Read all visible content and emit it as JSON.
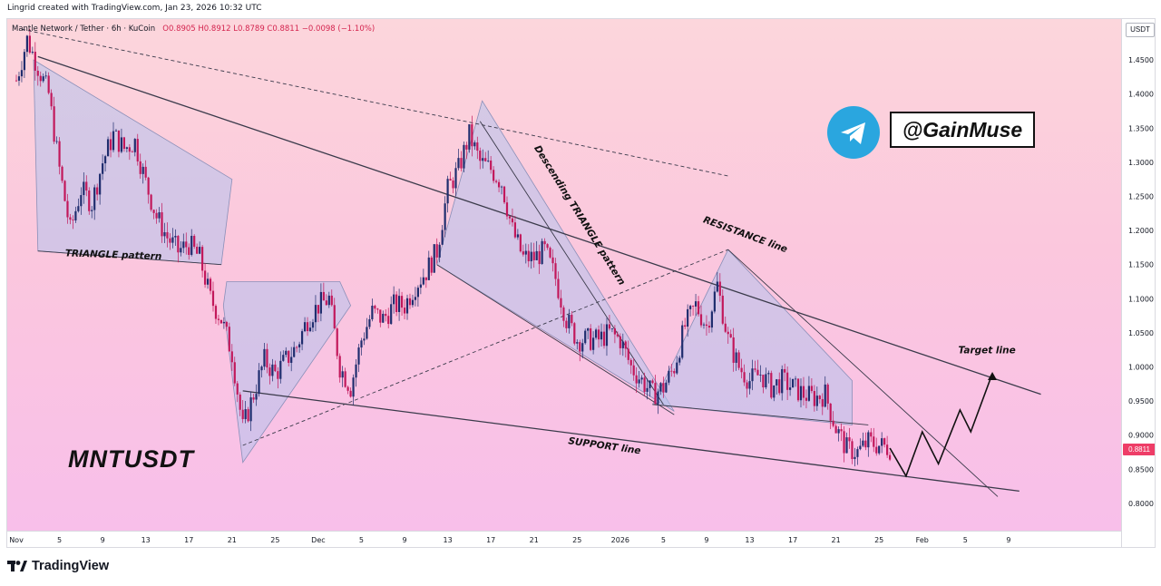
{
  "watermark": {
    "text": "Lingrid created with TradingView.com, Jan 23, 2026 10:32 UTC"
  },
  "header": {
    "symbol_text": "Mantle Network / Tether · 6h · KuCoin",
    "ohlc_text": "O0.8905 H0.8912 L0.8789 C0.8811 −0.0098 (−1.10%)"
  },
  "currency": "USDT",
  "last_price": "0.8811",
  "ticker_label": "MNTUSDT",
  "branding": {
    "handle": "@GainMuse",
    "icon": "telegram-icon",
    "footer": "TradingView",
    "footer_icon": "tradingview-logo-icon"
  },
  "colors": {
    "up": "#1f2d6e",
    "down": "#c2185b",
    "pattern_fill": "#b5c2ec",
    "price_badge": "#ee3d67"
  },
  "chart_data": {
    "type": "candlestick",
    "timeframe": "6h",
    "ylim": [
      0.76,
      1.51
    ],
    "y_ticks": [
      "1.4500",
      "1.4000",
      "1.3500",
      "1.3000",
      "1.2500",
      "1.2000",
      "1.1500",
      "1.1000",
      "1.0500",
      "1.0000",
      "0.9500",
      "0.9000",
      "0.8500",
      "0.8000"
    ],
    "x_ticks": [
      "Nov",
      "5",
      "9",
      "13",
      "17",
      "21",
      "25",
      "Dec",
      "5",
      "9",
      "13",
      "17",
      "21",
      "25",
      "2026",
      "5",
      "9",
      "13",
      "17",
      "21",
      "25",
      "Feb",
      "5",
      "9"
    ],
    "price_path": [
      {
        "d": 0,
        "p": 1.42
      },
      {
        "d": 1,
        "p": 1.48
      },
      {
        "d": 2,
        "p": 1.44
      },
      {
        "d": 3,
        "p": 1.4
      },
      {
        "d": 4,
        "p": 1.29
      },
      {
        "d": 5,
        "p": 1.2
      },
      {
        "d": 6,
        "p": 1.26
      },
      {
        "d": 7,
        "p": 1.24
      },
      {
        "d": 8,
        "p": 1.3
      },
      {
        "d": 9,
        "p": 1.34
      },
      {
        "d": 10,
        "p": 1.32
      },
      {
        "d": 11,
        "p": 1.33
      },
      {
        "d": 12,
        "p": 1.27
      },
      {
        "d": 13,
        "p": 1.22
      },
      {
        "d": 14,
        "p": 1.19
      },
      {
        "d": 15,
        "p": 1.17
      },
      {
        "d": 16,
        "p": 1.18
      },
      {
        "d": 17,
        "p": 1.16
      },
      {
        "d": 18,
        "p": 1.1
      },
      {
        "d": 19,
        "p": 1.07
      },
      {
        "d": 20,
        "p": 1.02
      },
      {
        "d": 21,
        "p": 0.91
      },
      {
        "d": 22,
        "p": 0.96
      },
      {
        "d": 23,
        "p": 1.01
      },
      {
        "d": 24,
        "p": 0.99
      },
      {
        "d": 25,
        "p": 1.01
      },
      {
        "d": 26,
        "p": 1.03
      },
      {
        "d": 27,
        "p": 1.07
      },
      {
        "d": 28,
        "p": 1.09
      },
      {
        "d": 29,
        "p": 1.1
      },
      {
        "d": 30,
        "p": 1.0
      },
      {
        "d": 31,
        "p": 0.97
      },
      {
        "d": 32,
        "p": 1.04
      },
      {
        "d": 33,
        "p": 1.08
      },
      {
        "d": 34,
        "p": 1.07
      },
      {
        "d": 35,
        "p": 1.09
      },
      {
        "d": 36,
        "p": 1.09
      },
      {
        "d": 37,
        "p": 1.12
      },
      {
        "d": 38,
        "p": 1.14
      },
      {
        "d": 39,
        "p": 1.17
      },
      {
        "d": 40,
        "p": 1.26
      },
      {
        "d": 41,
        "p": 1.29
      },
      {
        "d": 42,
        "p": 1.34
      },
      {
        "d": 43,
        "p": 1.3
      },
      {
        "d": 44,
        "p": 1.29
      },
      {
        "d": 45,
        "p": 1.27
      },
      {
        "d": 46,
        "p": 1.2
      },
      {
        "d": 47,
        "p": 1.16
      },
      {
        "d": 48,
        "p": 1.16
      },
      {
        "d": 49,
        "p": 1.17
      },
      {
        "d": 50,
        "p": 1.13
      },
      {
        "d": 51,
        "p": 1.07
      },
      {
        "d": 52,
        "p": 1.04
      },
      {
        "d": 53,
        "p": 1.04
      },
      {
        "d": 54,
        "p": 1.04
      },
      {
        "d": 55,
        "p": 1.05
      },
      {
        "d": 56,
        "p": 1.04
      },
      {
        "d": 57,
        "p": 1.0
      },
      {
        "d": 58,
        "p": 0.98
      },
      {
        "d": 59,
        "p": 0.96
      },
      {
        "d": 60,
        "p": 0.97
      },
      {
        "d": 61,
        "p": 1.0
      },
      {
        "d": 62,
        "p": 1.06
      },
      {
        "d": 63,
        "p": 1.09
      },
      {
        "d": 64,
        "p": 1.06
      },
      {
        "d": 65,
        "p": 1.12
      },
      {
        "d": 66,
        "p": 1.04
      },
      {
        "d": 67,
        "p": 1.0
      },
      {
        "d": 68,
        "p": 0.98
      },
      {
        "d": 69,
        "p": 0.99
      },
      {
        "d": 70,
        "p": 0.97
      },
      {
        "d": 71,
        "p": 0.98
      },
      {
        "d": 72,
        "p": 0.97
      },
      {
        "d": 73,
        "p": 0.96
      },
      {
        "d": 74,
        "p": 0.955
      },
      {
        "d": 75,
        "p": 0.96
      },
      {
        "d": 76,
        "p": 0.91
      },
      {
        "d": 77,
        "p": 0.88
      },
      {
        "d": 78,
        "p": 0.875
      },
      {
        "d": 79,
        "p": 0.89
      },
      {
        "d": 80,
        "p": 0.885
      },
      {
        "d": 81,
        "p": 0.881
      }
    ],
    "projection_path": [
      {
        "d": 81,
        "p": 0.881
      },
      {
        "d": 82.5,
        "p": 0.84
      },
      {
        "d": 84,
        "p": 0.905
      },
      {
        "d": 85.5,
        "p": 0.858
      },
      {
        "d": 87.5,
        "p": 0.937
      },
      {
        "d": 88.5,
        "p": 0.905
      },
      {
        "d": 90.5,
        "p": 0.99
      }
    ],
    "trendlines": [
      {
        "name": "resistance",
        "points": [
          {
            "d": 2,
            "p": 1.455
          },
          {
            "d": 95,
            "p": 0.96
          }
        ]
      },
      {
        "name": "support",
        "points": [
          {
            "d": 21,
            "p": 0.965
          },
          {
            "d": 93,
            "p": 0.818
          }
        ]
      },
      {
        "name": "upper_dashed",
        "points": [
          {
            "d": 0.5,
            "p": 1.495
          },
          {
            "d": 66,
            "p": 1.28
          }
        ],
        "style": "dashed"
      },
      {
        "name": "rising_dashed",
        "points": [
          {
            "d": 21,
            "p": 0.885
          },
          {
            "d": 66,
            "p": 1.172
          }
        ],
        "style": "dashed"
      },
      {
        "name": "triangle_pattern_lower",
        "points": [
          {
            "d": 2,
            "p": 1.17
          },
          {
            "d": 19,
            "p": 1.15
          }
        ]
      },
      {
        "name": "descending_triangle_upper",
        "points": [
          {
            "d": 43,
            "p": 1.36
          },
          {
            "d": 60,
            "p": 0.945
          }
        ]
      },
      {
        "name": "descending_triangle_lower",
        "points": [
          {
            "d": 39,
            "p": 1.15
          },
          {
            "d": 61,
            "p": 0.93
          }
        ]
      },
      {
        "name": "wedge_lower",
        "points": [
          {
            "d": 59,
            "p": 0.945
          },
          {
            "d": 79,
            "p": 0.915
          }
        ]
      },
      {
        "name": "wedge_upper",
        "points": [
          {
            "d": 66,
            "p": 1.172
          },
          {
            "d": 91,
            "p": 0.81
          }
        ]
      }
    ],
    "patterns": [
      {
        "name": "triangle-pattern",
        "points": [
          {
            "d": 1.6,
            "p": 1.45
          },
          {
            "d": 20,
            "p": 1.275
          },
          {
            "d": 19,
            "p": 1.15
          },
          {
            "d": 2,
            "p": 1.17
          }
        ]
      },
      {
        "name": "wedge-pattern-1",
        "points": [
          {
            "d": 19.5,
            "p": 1.125
          },
          {
            "d": 30,
            "p": 1.125
          },
          {
            "d": 31,
            "p": 1.09
          },
          {
            "d": 21,
            "p": 0.86
          },
          {
            "d": 19.2,
            "p": 1.09
          }
        ]
      },
      {
        "name": "descending-triangle",
        "points": [
          {
            "d": 43.2,
            "p": 1.39
          },
          {
            "d": 61,
            "p": 0.935
          },
          {
            "d": 60,
            "p": 0.945
          },
          {
            "d": 39,
            "p": 1.15
          }
        ]
      },
      {
        "name": "wedge-pattern-2",
        "points": [
          {
            "d": 66,
            "p": 1.172
          },
          {
            "d": 77.5,
            "p": 0.98
          },
          {
            "d": 77.5,
            "p": 0.915
          },
          {
            "d": 59,
            "p": 0.945
          }
        ]
      }
    ],
    "annotations": [
      {
        "text": "TRIANGLE pattern",
        "d": 9,
        "p": 1.16,
        "rotate": 2
      },
      {
        "text": "Descending TRIANGLE pattern",
        "d": 52,
        "p": 1.22,
        "rotate": 58
      },
      {
        "text": "RESISTANCE line",
        "d": 67.5,
        "p": 1.19,
        "rotate": 20
      },
      {
        "text": "SUPPORT line",
        "d": 54.5,
        "p": 0.88,
        "rotate": 8
      },
      {
        "text": "Target line",
        "d": 90,
        "p": 1.02,
        "rotate": 0
      }
    ]
  }
}
